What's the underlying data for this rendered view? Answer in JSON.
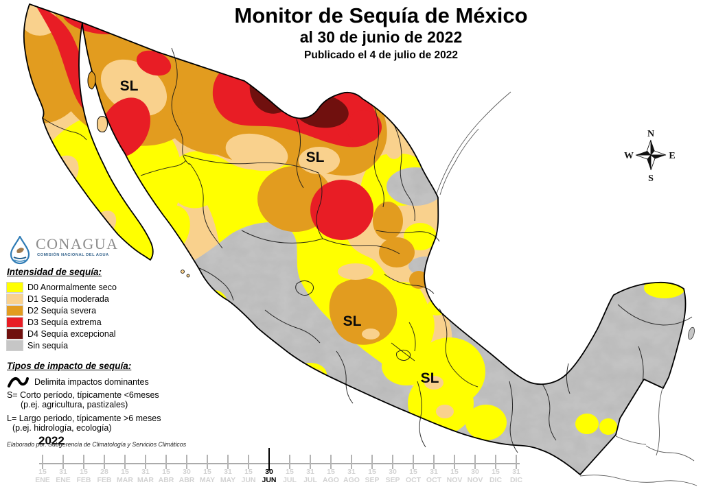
{
  "title": {
    "line1": "Monitor de Sequía de México",
    "line2": "al 30 de junio de 2022",
    "line3": "Publicado el 4 de julio de 2022"
  },
  "logo": {
    "name": "CONAGUA",
    "subtitle": "COMISIÓN NACIONAL DEL AGUA"
  },
  "legend": {
    "title": "Intensidad de sequía:",
    "items": [
      {
        "label": "D0 Anormalmente seco",
        "color": "#FFFF00"
      },
      {
        "label": "D1 Sequía moderada",
        "color": "#F9D18D"
      },
      {
        "label": "D2 Sequía severa",
        "color": "#E29C1F"
      },
      {
        "label": "D3 Sequía extrema",
        "color": "#E81D25"
      },
      {
        "label": "D4 Sequía excepcional",
        "color": "#70100E"
      },
      {
        "label": "Sin sequía",
        "color": "#C6C6C6"
      }
    ]
  },
  "impact": {
    "title": "Tipos de impacto de sequía:",
    "delimit_label": "Delimita impactos dominantes",
    "s_line1": "S= Corto período, típicamente <6meses",
    "s_line2": "(p.ej. agricultura, pastizales)",
    "l_line1": "L= Largo periodo, típicamente >6 meses",
    "l_line2": "(p.ej. hidrología, ecología)"
  },
  "attribution": "Elaborado por: Subgerencia de Climatología y Servicios Climáticos",
  "compass": {
    "n": "N",
    "e": "E",
    "s": "S",
    "w": "W"
  },
  "map": {
    "sl_labels": [
      {
        "text": "SL"
      },
      {
        "text": "SL"
      },
      {
        "text": "SL"
      },
      {
        "text": "SL"
      }
    ]
  },
  "timeline": {
    "year": "2022",
    "ticks": [
      {
        "day": "15",
        "month": "ENE",
        "current": false
      },
      {
        "day": "31",
        "month": "ENE",
        "current": false
      },
      {
        "day": "15",
        "month": "FEB",
        "current": false
      },
      {
        "day": "28",
        "month": "FEB",
        "current": false
      },
      {
        "day": "15",
        "month": "MAR",
        "current": false
      },
      {
        "day": "31",
        "month": "MAR",
        "current": false
      },
      {
        "day": "15",
        "month": "ABR",
        "current": false
      },
      {
        "day": "30",
        "month": "ABR",
        "current": false
      },
      {
        "day": "15",
        "month": "MAY",
        "current": false
      },
      {
        "day": "31",
        "month": "MAY",
        "current": false
      },
      {
        "day": "15",
        "month": "JUN",
        "current": false
      },
      {
        "day": "30",
        "month": "JUN",
        "current": true
      },
      {
        "day": "15",
        "month": "JUL",
        "current": false
      },
      {
        "day": "31",
        "month": "JUL",
        "current": false
      },
      {
        "day": "15",
        "month": "AGO",
        "current": false
      },
      {
        "day": "31",
        "month": "AGO",
        "current": false
      },
      {
        "day": "15",
        "month": "SEP",
        "current": false
      },
      {
        "day": "30",
        "month": "SEP",
        "current": false
      },
      {
        "day": "15",
        "month": "OCT",
        "current": false
      },
      {
        "day": "31",
        "month": "OCT",
        "current": false
      },
      {
        "day": "15",
        "month": "NOV",
        "current": false
      },
      {
        "day": "30",
        "month": "NOV",
        "current": false
      },
      {
        "day": "15",
        "month": "DIC",
        "current": false
      },
      {
        "day": "31",
        "month": "DIC",
        "current": false
      }
    ]
  }
}
